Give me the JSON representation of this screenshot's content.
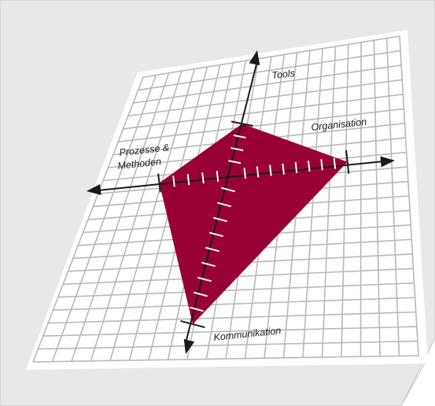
{
  "colors": {
    "page_background": "#e8e8e8",
    "grid_sheet": "#ffffff",
    "grid_line": "#b8b8b8",
    "shape_fill": "#980036",
    "axis": "#1a1a1a",
    "tick": "#ffffff"
  },
  "axes": {
    "tools": {
      "label": "Tools"
    },
    "organisation": {
      "label": "Organisation"
    },
    "prozesse": {
      "label_line1": "Prozesse &",
      "label_line2": "Methoden"
    },
    "kommunikation": {
      "label": "Kommunikation"
    }
  },
  "chart_data": {
    "type": "radar",
    "categories": [
      "Tools",
      "Organisation",
      "Kommunikation",
      "Prozesse & Methoden"
    ],
    "values": [
      4,
      9,
      10,
      5
    ],
    "max": 10
  }
}
